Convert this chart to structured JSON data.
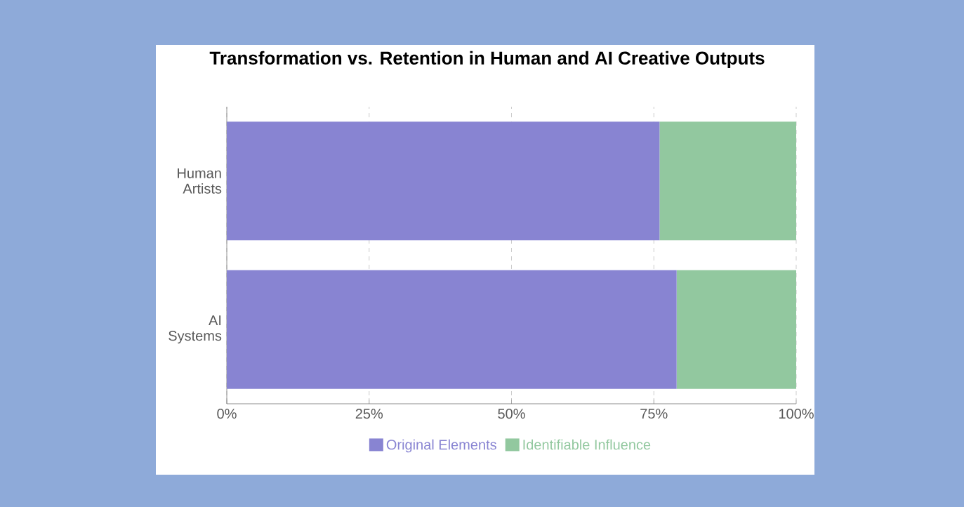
{
  "chart_data": {
    "type": "bar",
    "orientation": "horizontal",
    "stacked": true,
    "title": "Transformation vs. Retention in Human and AI Creative Outputs",
    "categories": [
      "Human Artists",
      "AI Systems"
    ],
    "series": [
      {
        "name": "Original Elements",
        "color": "#8884d2",
        "values": [
          76,
          79
        ]
      },
      {
        "name": "Identifiable Influence",
        "color": "#92c89f",
        "values": [
          24,
          21
        ]
      }
    ],
    "xlim": [
      0,
      100
    ],
    "xticks": [
      {
        "value": 0,
        "label": "0%"
      },
      {
        "value": 25,
        "label": "25%"
      },
      {
        "value": 50,
        "label": "50%"
      },
      {
        "value": 75,
        "label": "75%"
      },
      {
        "value": 100,
        "label": "100%"
      }
    ],
    "grid": "x",
    "legend": "bottom"
  }
}
